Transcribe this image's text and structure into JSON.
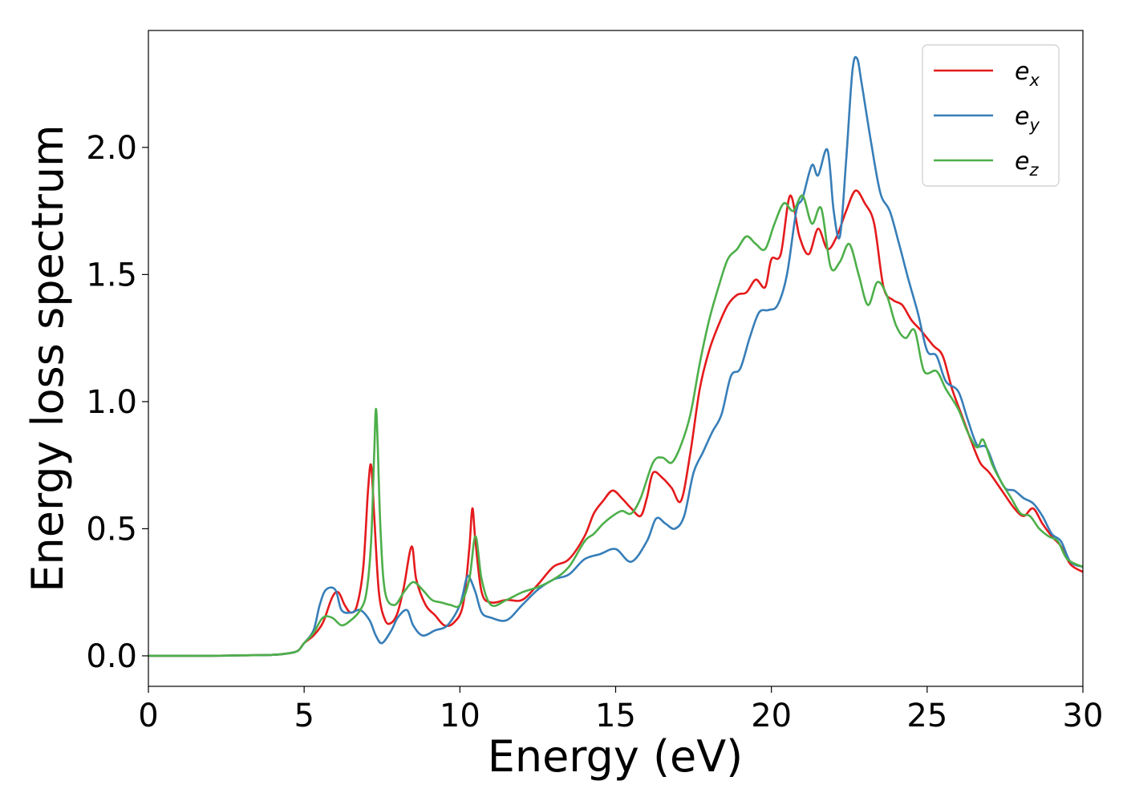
{
  "chart_data": {
    "type": "line",
    "title": "",
    "xlabel": "Energy (eV)",
    "ylabel": "Energy loss spectrum",
    "xlim": [
      0,
      30
    ],
    "ylim": [
      -0.12,
      2.46
    ],
    "xticks": [
      0,
      5,
      10,
      15,
      20,
      25,
      30
    ],
    "xtick_labels": [
      "0",
      "5",
      "10",
      "15",
      "20",
      "25",
      "30"
    ],
    "yticks": [
      0.0,
      0.5,
      1.0,
      1.5,
      2.0
    ],
    "ytick_labels": [
      "0.0",
      "0.5",
      "1.0",
      "1.5",
      "2.0"
    ],
    "grid": false,
    "legend": {
      "position": "top-right",
      "entries": [
        {
          "base": "e",
          "sub": "x",
          "color": "#e41a1c"
        },
        {
          "base": "e",
          "sub": "y",
          "color": "#377eb8"
        },
        {
          "base": "e",
          "sub": "z",
          "color": "#4daf4a"
        }
      ]
    },
    "series": [
      {
        "name": "e_x",
        "color": "#e41a1c",
        "points": [
          [
            0,
            0.0
          ],
          [
            1,
            0.0
          ],
          [
            2,
            0.0
          ],
          [
            3,
            0.002
          ],
          [
            4,
            0.004
          ],
          [
            4.5,
            0.01
          ],
          [
            4.8,
            0.02
          ],
          [
            5.0,
            0.05
          ],
          [
            5.3,
            0.08
          ],
          [
            5.6,
            0.13
          ],
          [
            5.9,
            0.23
          ],
          [
            6.1,
            0.25
          ],
          [
            6.3,
            0.2
          ],
          [
            6.5,
            0.17
          ],
          [
            6.7,
            0.2
          ],
          [
            6.9,
            0.35
          ],
          [
            7.05,
            0.65
          ],
          [
            7.15,
            0.75
          ],
          [
            7.25,
            0.55
          ],
          [
            7.4,
            0.25
          ],
          [
            7.6,
            0.14
          ],
          [
            7.8,
            0.13
          ],
          [
            8.0,
            0.17
          ],
          [
            8.2,
            0.27
          ],
          [
            8.45,
            0.43
          ],
          [
            8.6,
            0.3
          ],
          [
            8.9,
            0.2
          ],
          [
            9.2,
            0.16
          ],
          [
            9.5,
            0.12
          ],
          [
            9.8,
            0.13
          ],
          [
            10.1,
            0.2
          ],
          [
            10.3,
            0.42
          ],
          [
            10.4,
            0.58
          ],
          [
            10.5,
            0.45
          ],
          [
            10.7,
            0.25
          ],
          [
            11.0,
            0.21
          ],
          [
            11.5,
            0.22
          ],
          [
            12.0,
            0.22
          ],
          [
            12.5,
            0.28
          ],
          [
            13.0,
            0.35
          ],
          [
            13.5,
            0.38
          ],
          [
            14.0,
            0.47
          ],
          [
            14.3,
            0.56
          ],
          [
            14.6,
            0.61
          ],
          [
            14.9,
            0.65
          ],
          [
            15.2,
            0.62
          ],
          [
            15.5,
            0.58
          ],
          [
            15.8,
            0.55
          ],
          [
            16.0,
            0.62
          ],
          [
            16.2,
            0.72
          ],
          [
            16.5,
            0.7
          ],
          [
            16.8,
            0.66
          ],
          [
            17.1,
            0.61
          ],
          [
            17.4,
            0.8
          ],
          [
            17.7,
            1.05
          ],
          [
            18.0,
            1.2
          ],
          [
            18.3,
            1.3
          ],
          [
            18.6,
            1.38
          ],
          [
            18.9,
            1.42
          ],
          [
            19.2,
            1.43
          ],
          [
            19.5,
            1.48
          ],
          [
            19.8,
            1.45
          ],
          [
            20.0,
            1.56
          ],
          [
            20.3,
            1.58
          ],
          [
            20.6,
            1.81
          ],
          [
            20.9,
            1.65
          ],
          [
            21.2,
            1.58
          ],
          [
            21.5,
            1.68
          ],
          [
            21.8,
            1.6
          ],
          [
            22.1,
            1.65
          ],
          [
            22.4,
            1.75
          ],
          [
            22.7,
            1.83
          ],
          [
            23.0,
            1.78
          ],
          [
            23.3,
            1.7
          ],
          [
            23.6,
            1.45
          ],
          [
            23.9,
            1.4
          ],
          [
            24.2,
            1.38
          ],
          [
            24.5,
            1.32
          ],
          [
            24.8,
            1.28
          ],
          [
            25.2,
            1.22
          ],
          [
            25.5,
            1.18
          ],
          [
            25.8,
            1.05
          ],
          [
            26.1,
            0.95
          ],
          [
            26.4,
            0.85
          ],
          [
            26.7,
            0.76
          ],
          [
            27.0,
            0.72
          ],
          [
            27.4,
            0.65
          ],
          [
            27.8,
            0.58
          ],
          [
            28.1,
            0.55
          ],
          [
            28.4,
            0.58
          ],
          [
            28.7,
            0.52
          ],
          [
            29.0,
            0.47
          ],
          [
            29.3,
            0.43
          ],
          [
            29.6,
            0.36
          ],
          [
            30.0,
            0.33
          ]
        ]
      },
      {
        "name": "e_y",
        "color": "#377eb8",
        "points": [
          [
            0,
            0.0
          ],
          [
            1,
            0.0
          ],
          [
            2,
            0.0
          ],
          [
            3,
            0.002
          ],
          [
            4,
            0.004
          ],
          [
            4.5,
            0.01
          ],
          [
            4.8,
            0.02
          ],
          [
            5.0,
            0.05
          ],
          [
            5.3,
            0.1
          ],
          [
            5.5,
            0.2
          ],
          [
            5.7,
            0.26
          ],
          [
            6.0,
            0.26
          ],
          [
            6.2,
            0.18
          ],
          [
            6.5,
            0.17
          ],
          [
            6.8,
            0.18
          ],
          [
            7.1,
            0.14
          ],
          [
            7.3,
            0.08
          ],
          [
            7.5,
            0.05
          ],
          [
            7.8,
            0.1
          ],
          [
            8.0,
            0.15
          ],
          [
            8.3,
            0.18
          ],
          [
            8.5,
            0.12
          ],
          [
            8.8,
            0.08
          ],
          [
            9.2,
            0.1
          ],
          [
            9.6,
            0.12
          ],
          [
            10.0,
            0.2
          ],
          [
            10.2,
            0.3
          ],
          [
            10.3,
            0.31
          ],
          [
            10.5,
            0.25
          ],
          [
            10.7,
            0.17
          ],
          [
            11.0,
            0.15
          ],
          [
            11.5,
            0.14
          ],
          [
            12.0,
            0.2
          ],
          [
            12.5,
            0.26
          ],
          [
            13.0,
            0.3
          ],
          [
            13.5,
            0.32
          ],
          [
            14.0,
            0.38
          ],
          [
            14.5,
            0.4
          ],
          [
            15.0,
            0.42
          ],
          [
            15.5,
            0.37
          ],
          [
            16.0,
            0.45
          ],
          [
            16.3,
            0.54
          ],
          [
            16.6,
            0.52
          ],
          [
            16.9,
            0.5
          ],
          [
            17.2,
            0.55
          ],
          [
            17.5,
            0.72
          ],
          [
            17.8,
            0.8
          ],
          [
            18.1,
            0.88
          ],
          [
            18.4,
            0.95
          ],
          [
            18.7,
            1.1
          ],
          [
            19.0,
            1.13
          ],
          [
            19.3,
            1.25
          ],
          [
            19.6,
            1.35
          ],
          [
            19.9,
            1.36
          ],
          [
            20.2,
            1.38
          ],
          [
            20.5,
            1.5
          ],
          [
            20.8,
            1.75
          ],
          [
            21.0,
            1.8
          ],
          [
            21.3,
            1.93
          ],
          [
            21.5,
            1.89
          ],
          [
            21.8,
            1.99
          ],
          [
            22.0,
            1.75
          ],
          [
            22.2,
            1.65
          ],
          [
            22.4,
            1.95
          ],
          [
            22.6,
            2.3
          ],
          [
            22.75,
            2.35
          ],
          [
            22.9,
            2.25
          ],
          [
            23.2,
            2.02
          ],
          [
            23.5,
            1.82
          ],
          [
            23.8,
            1.75
          ],
          [
            24.1,
            1.62
          ],
          [
            24.4,
            1.48
          ],
          [
            24.7,
            1.35
          ],
          [
            25.0,
            1.2
          ],
          [
            25.3,
            1.18
          ],
          [
            25.6,
            1.08
          ],
          [
            26.0,
            1.04
          ],
          [
            26.3,
            0.93
          ],
          [
            26.6,
            0.83
          ],
          [
            26.9,
            0.82
          ],
          [
            27.2,
            0.73
          ],
          [
            27.5,
            0.66
          ],
          [
            27.8,
            0.65
          ],
          [
            28.1,
            0.62
          ],
          [
            28.4,
            0.6
          ],
          [
            28.7,
            0.55
          ],
          [
            29.0,
            0.48
          ],
          [
            29.3,
            0.45
          ],
          [
            29.6,
            0.37
          ],
          [
            30.0,
            0.35
          ]
        ]
      },
      {
        "name": "e_z",
        "color": "#4daf4a",
        "points": [
          [
            0,
            0.0
          ],
          [
            1,
            0.0
          ],
          [
            2,
            0.0
          ],
          [
            3,
            0.002
          ],
          [
            4,
            0.004
          ],
          [
            4.5,
            0.01
          ],
          [
            4.8,
            0.02
          ],
          [
            5.0,
            0.05
          ],
          [
            5.3,
            0.09
          ],
          [
            5.6,
            0.15
          ],
          [
            5.9,
            0.15
          ],
          [
            6.2,
            0.12
          ],
          [
            6.5,
            0.14
          ],
          [
            6.8,
            0.18
          ],
          [
            7.0,
            0.25
          ],
          [
            7.15,
            0.45
          ],
          [
            7.25,
            0.8
          ],
          [
            7.32,
            0.96
          ],
          [
            7.45,
            0.5
          ],
          [
            7.6,
            0.25
          ],
          [
            7.9,
            0.2
          ],
          [
            8.2,
            0.25
          ],
          [
            8.5,
            0.29
          ],
          [
            8.8,
            0.26
          ],
          [
            9.1,
            0.22
          ],
          [
            9.4,
            0.21
          ],
          [
            9.7,
            0.2
          ],
          [
            10.0,
            0.2
          ],
          [
            10.3,
            0.3
          ],
          [
            10.5,
            0.47
          ],
          [
            10.7,
            0.3
          ],
          [
            11.0,
            0.2
          ],
          [
            11.5,
            0.22
          ],
          [
            12.0,
            0.25
          ],
          [
            12.5,
            0.27
          ],
          [
            13.0,
            0.3
          ],
          [
            13.5,
            0.35
          ],
          [
            14.0,
            0.45
          ],
          [
            14.3,
            0.48
          ],
          [
            14.6,
            0.52
          ],
          [
            14.9,
            0.55
          ],
          [
            15.2,
            0.57
          ],
          [
            15.5,
            0.56
          ],
          [
            15.8,
            0.62
          ],
          [
            16.2,
            0.76
          ],
          [
            16.5,
            0.78
          ],
          [
            16.8,
            0.76
          ],
          [
            17.1,
            0.83
          ],
          [
            17.4,
            0.95
          ],
          [
            17.7,
            1.15
          ],
          [
            18.0,
            1.32
          ],
          [
            18.3,
            1.45
          ],
          [
            18.6,
            1.56
          ],
          [
            18.9,
            1.6
          ],
          [
            19.2,
            1.65
          ],
          [
            19.5,
            1.62
          ],
          [
            19.8,
            1.6
          ],
          [
            20.1,
            1.7
          ],
          [
            20.4,
            1.78
          ],
          [
            20.7,
            1.75
          ],
          [
            21.0,
            1.81
          ],
          [
            21.3,
            1.7
          ],
          [
            21.6,
            1.76
          ],
          [
            21.9,
            1.53
          ],
          [
            22.2,
            1.55
          ],
          [
            22.5,
            1.62
          ],
          [
            22.8,
            1.5
          ],
          [
            23.1,
            1.38
          ],
          [
            23.4,
            1.47
          ],
          [
            23.7,
            1.42
          ],
          [
            24.0,
            1.3
          ],
          [
            24.3,
            1.25
          ],
          [
            24.6,
            1.28
          ],
          [
            24.9,
            1.12
          ],
          [
            25.3,
            1.12
          ],
          [
            25.6,
            1.05
          ],
          [
            26.0,
            0.97
          ],
          [
            26.3,
            0.88
          ],
          [
            26.6,
            0.82
          ],
          [
            26.8,
            0.85
          ],
          [
            27.1,
            0.75
          ],
          [
            27.4,
            0.68
          ],
          [
            27.7,
            0.62
          ],
          [
            28.0,
            0.56
          ],
          [
            28.3,
            0.55
          ],
          [
            28.6,
            0.5
          ],
          [
            28.9,
            0.47
          ],
          [
            29.2,
            0.45
          ],
          [
            29.5,
            0.38
          ],
          [
            30.0,
            0.35
          ]
        ]
      }
    ]
  }
}
